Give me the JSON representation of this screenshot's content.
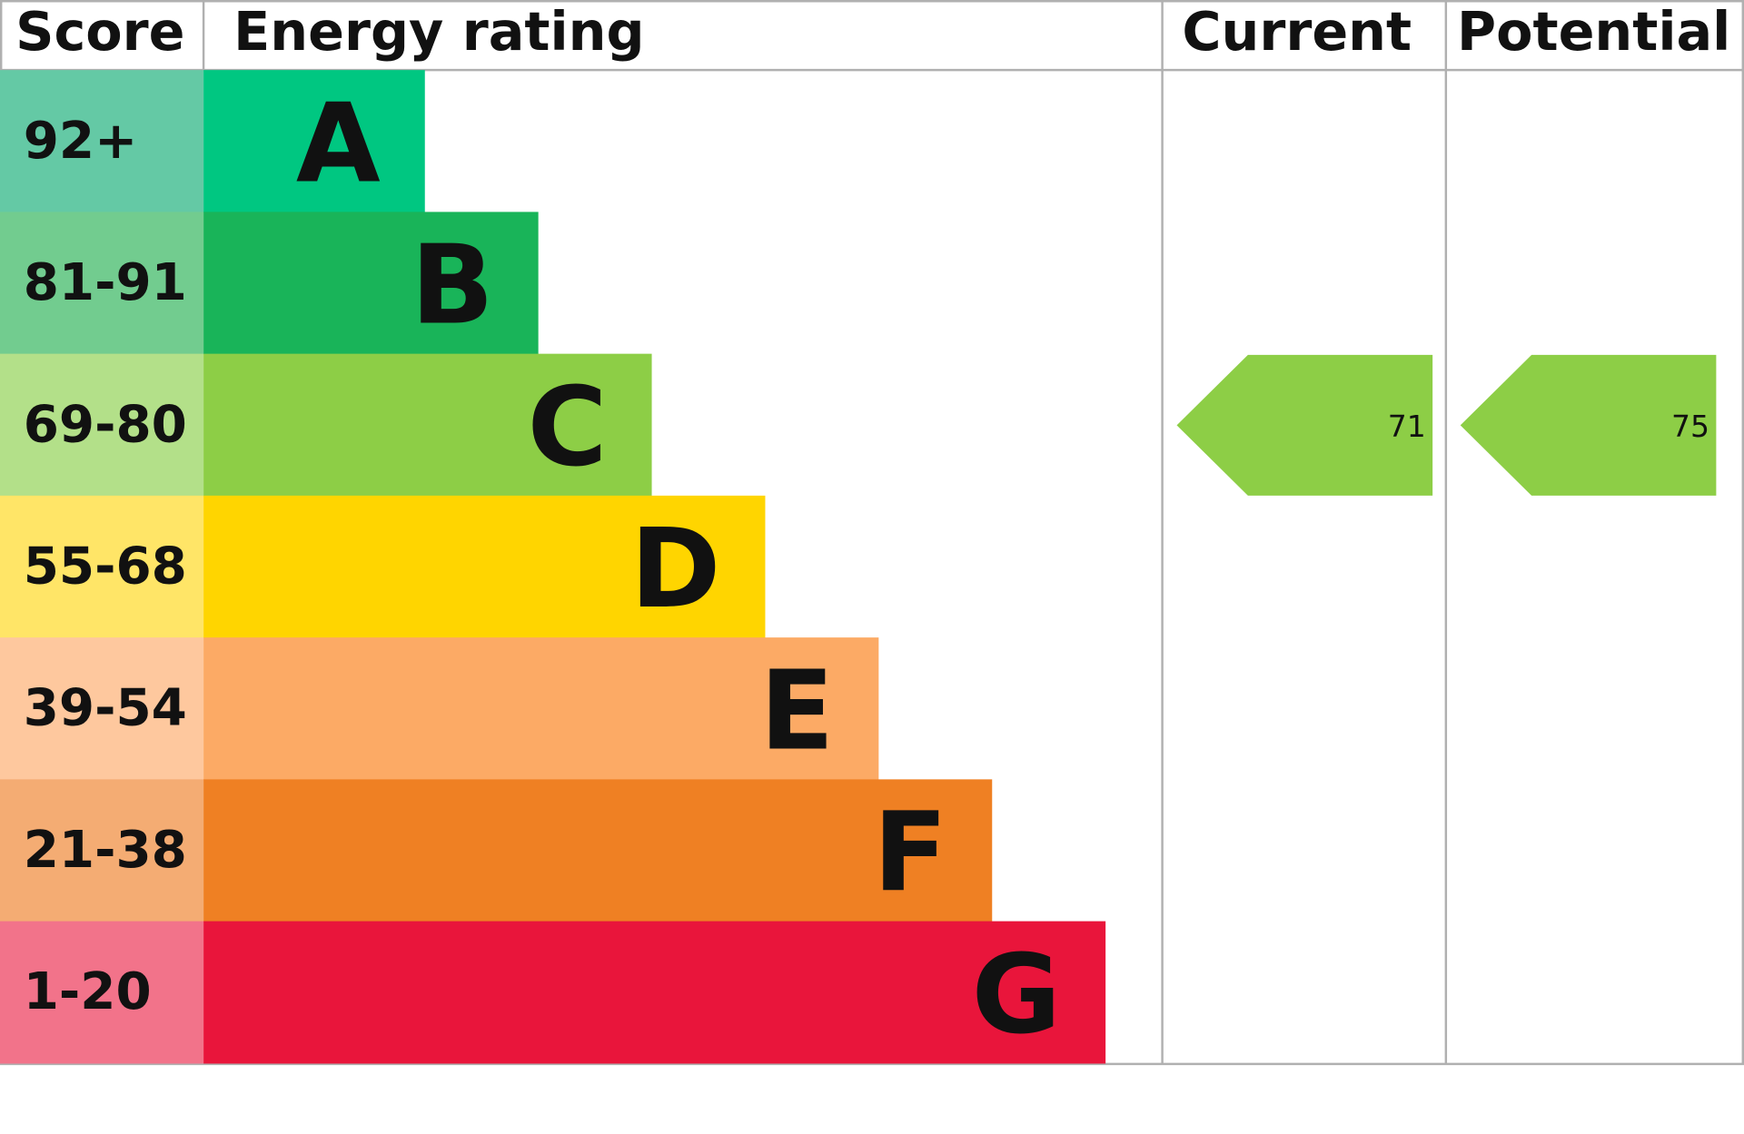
{
  "header": {
    "score": "Score",
    "rating": "Energy rating",
    "current": "Current",
    "potential": "Potential"
  },
  "bands": [
    {
      "score": "92+",
      "letter": "A",
      "color": "#00c781",
      "score_color": "#64c9a5"
    },
    {
      "score": "81-91",
      "letter": "B",
      "color": "#19b459",
      "score_color": "#72cc8f"
    },
    {
      "score": "69-80",
      "letter": "C",
      "color": "#8dce46",
      "score_color": "#b3e089"
    },
    {
      "score": "55-68",
      "letter": "D",
      "color": "#ffd500",
      "score_color": "#ffe567"
    },
    {
      "score": "39-54",
      "letter": "E",
      "color": "#fcaa65",
      "score_color": "#fec89e"
    },
    {
      "score": "21-38",
      "letter": "F",
      "color": "#ef8023",
      "score_color": "#f4ac73"
    },
    {
      "score": "1-20",
      "letter": "G",
      "color": "#e9153b",
      "score_color": "#f2738a"
    }
  ],
  "current": {
    "value": 71
  },
  "potential": {
    "value": 75
  }
}
